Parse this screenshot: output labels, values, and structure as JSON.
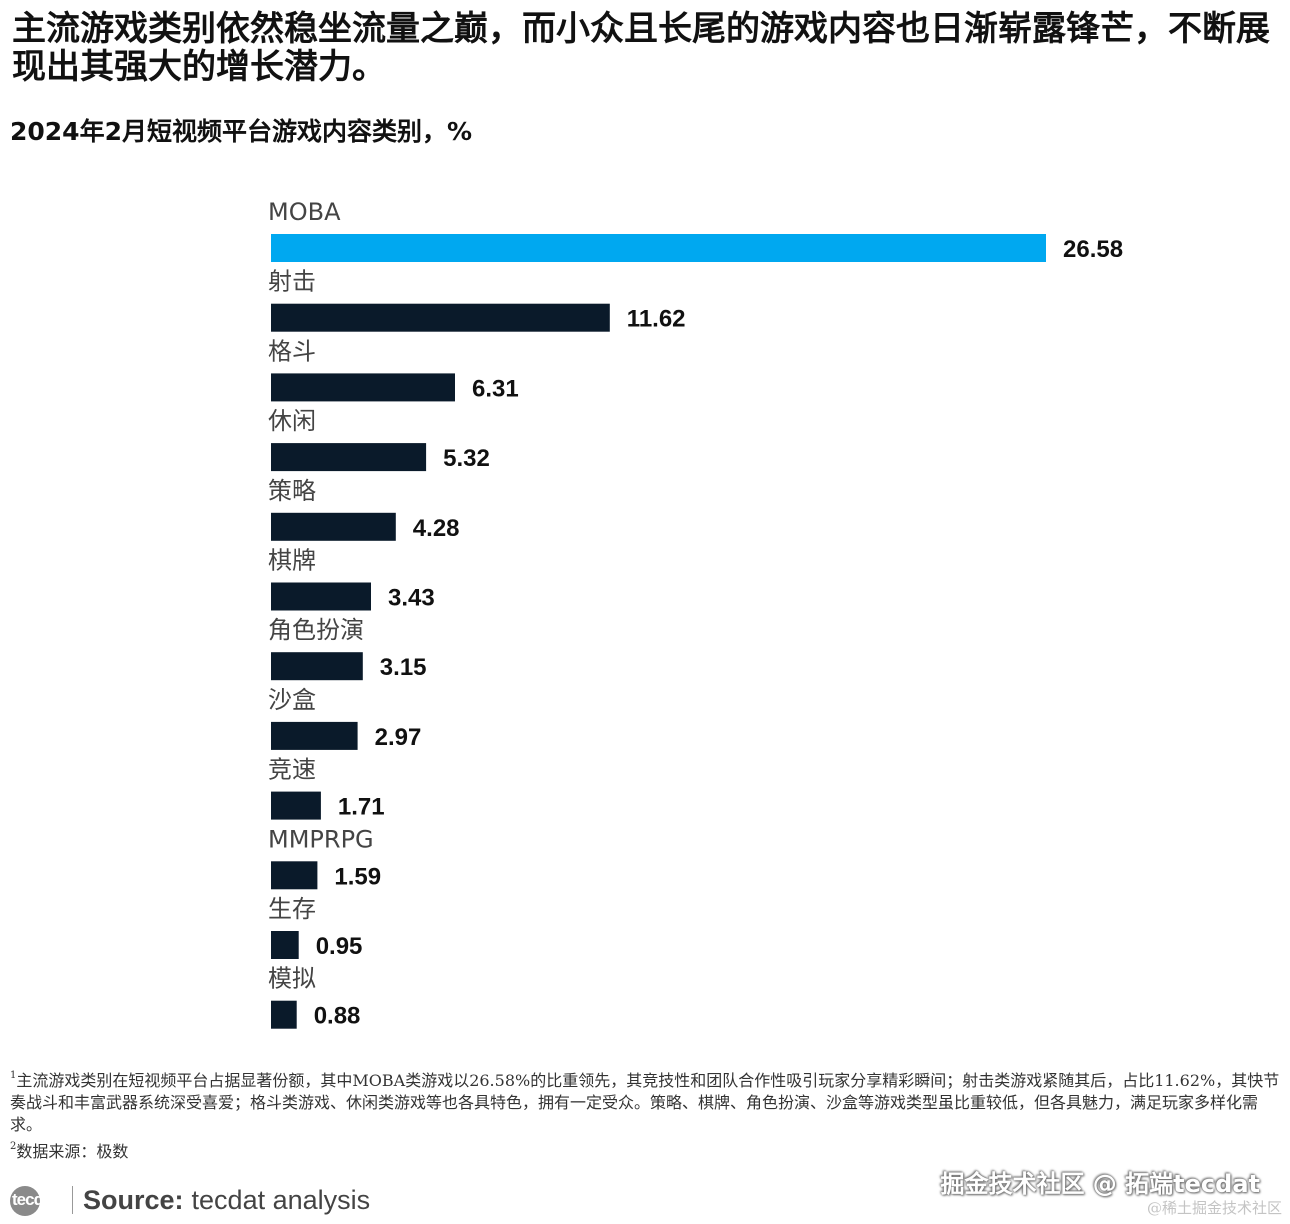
{
  "headline": "主流游戏类别依然稳坐流量之巅，而小众且长尾的游戏内容也日渐崭露锋芒，不断展现出其强大的增长潜力。",
  "colors": {
    "highlight": "#00a8f0",
    "bar": "#0a1a2a",
    "text": "#111111",
    "category_text": "#444444"
  },
  "chart_data": {
    "type": "bar",
    "orientation": "horizontal",
    "title": "2024年2月短视频平台游戏内容类别，%",
    "categories": [
      "MOBA",
      "射击",
      "格斗",
      "休闲",
      "策略",
      "棋牌",
      "角色扮演",
      "沙盒",
      "竞速",
      "MMPRPG",
      "生存",
      "模拟"
    ],
    "values": [
      26.58,
      11.62,
      6.31,
      5.32,
      4.28,
      3.43,
      3.15,
      2.97,
      1.71,
      1.59,
      0.95,
      0.88
    ],
    "value_labels": [
      "26.58",
      "11.62",
      "6.31",
      "5.32",
      "4.28",
      "3.43",
      "3.15",
      "2.97",
      "1.71",
      "1.59",
      "0.95",
      "0.88"
    ],
    "highlight_index": 0,
    "xlim": [
      0,
      26.58
    ],
    "xlabel": "",
    "ylabel": "",
    "grid": false,
    "legend": "none"
  },
  "footnotes": {
    "note1_mark": "1",
    "note1_text": "主流游戏类别在短视频平台占据显著份额，其中MOBA类游戏以26.58%的比重领先，其竞技性和团队合作性吸引玩家分享精彩瞬间；射击类游戏紧随其后，占比11.62%，其快节奏战斗和丰富武器系统深受喜爱；格斗类游戏、休闲类游戏等也各具特色，拥有一定受众。策略、棋牌、角色扮演、沙盒等游戏类型虽比重较低，但各具魅力，满足玩家多样化需求。",
    "note2_mark": "2",
    "note2_text": "数据来源：极数"
  },
  "source": {
    "logo_text": "tecdat",
    "label": "Source:",
    "value": "tecdat analysis"
  },
  "watermarks": {
    "line1": "掘金技术社区 @ 拓端tecdat",
    "line2": "@稀土掘金技术社区"
  }
}
